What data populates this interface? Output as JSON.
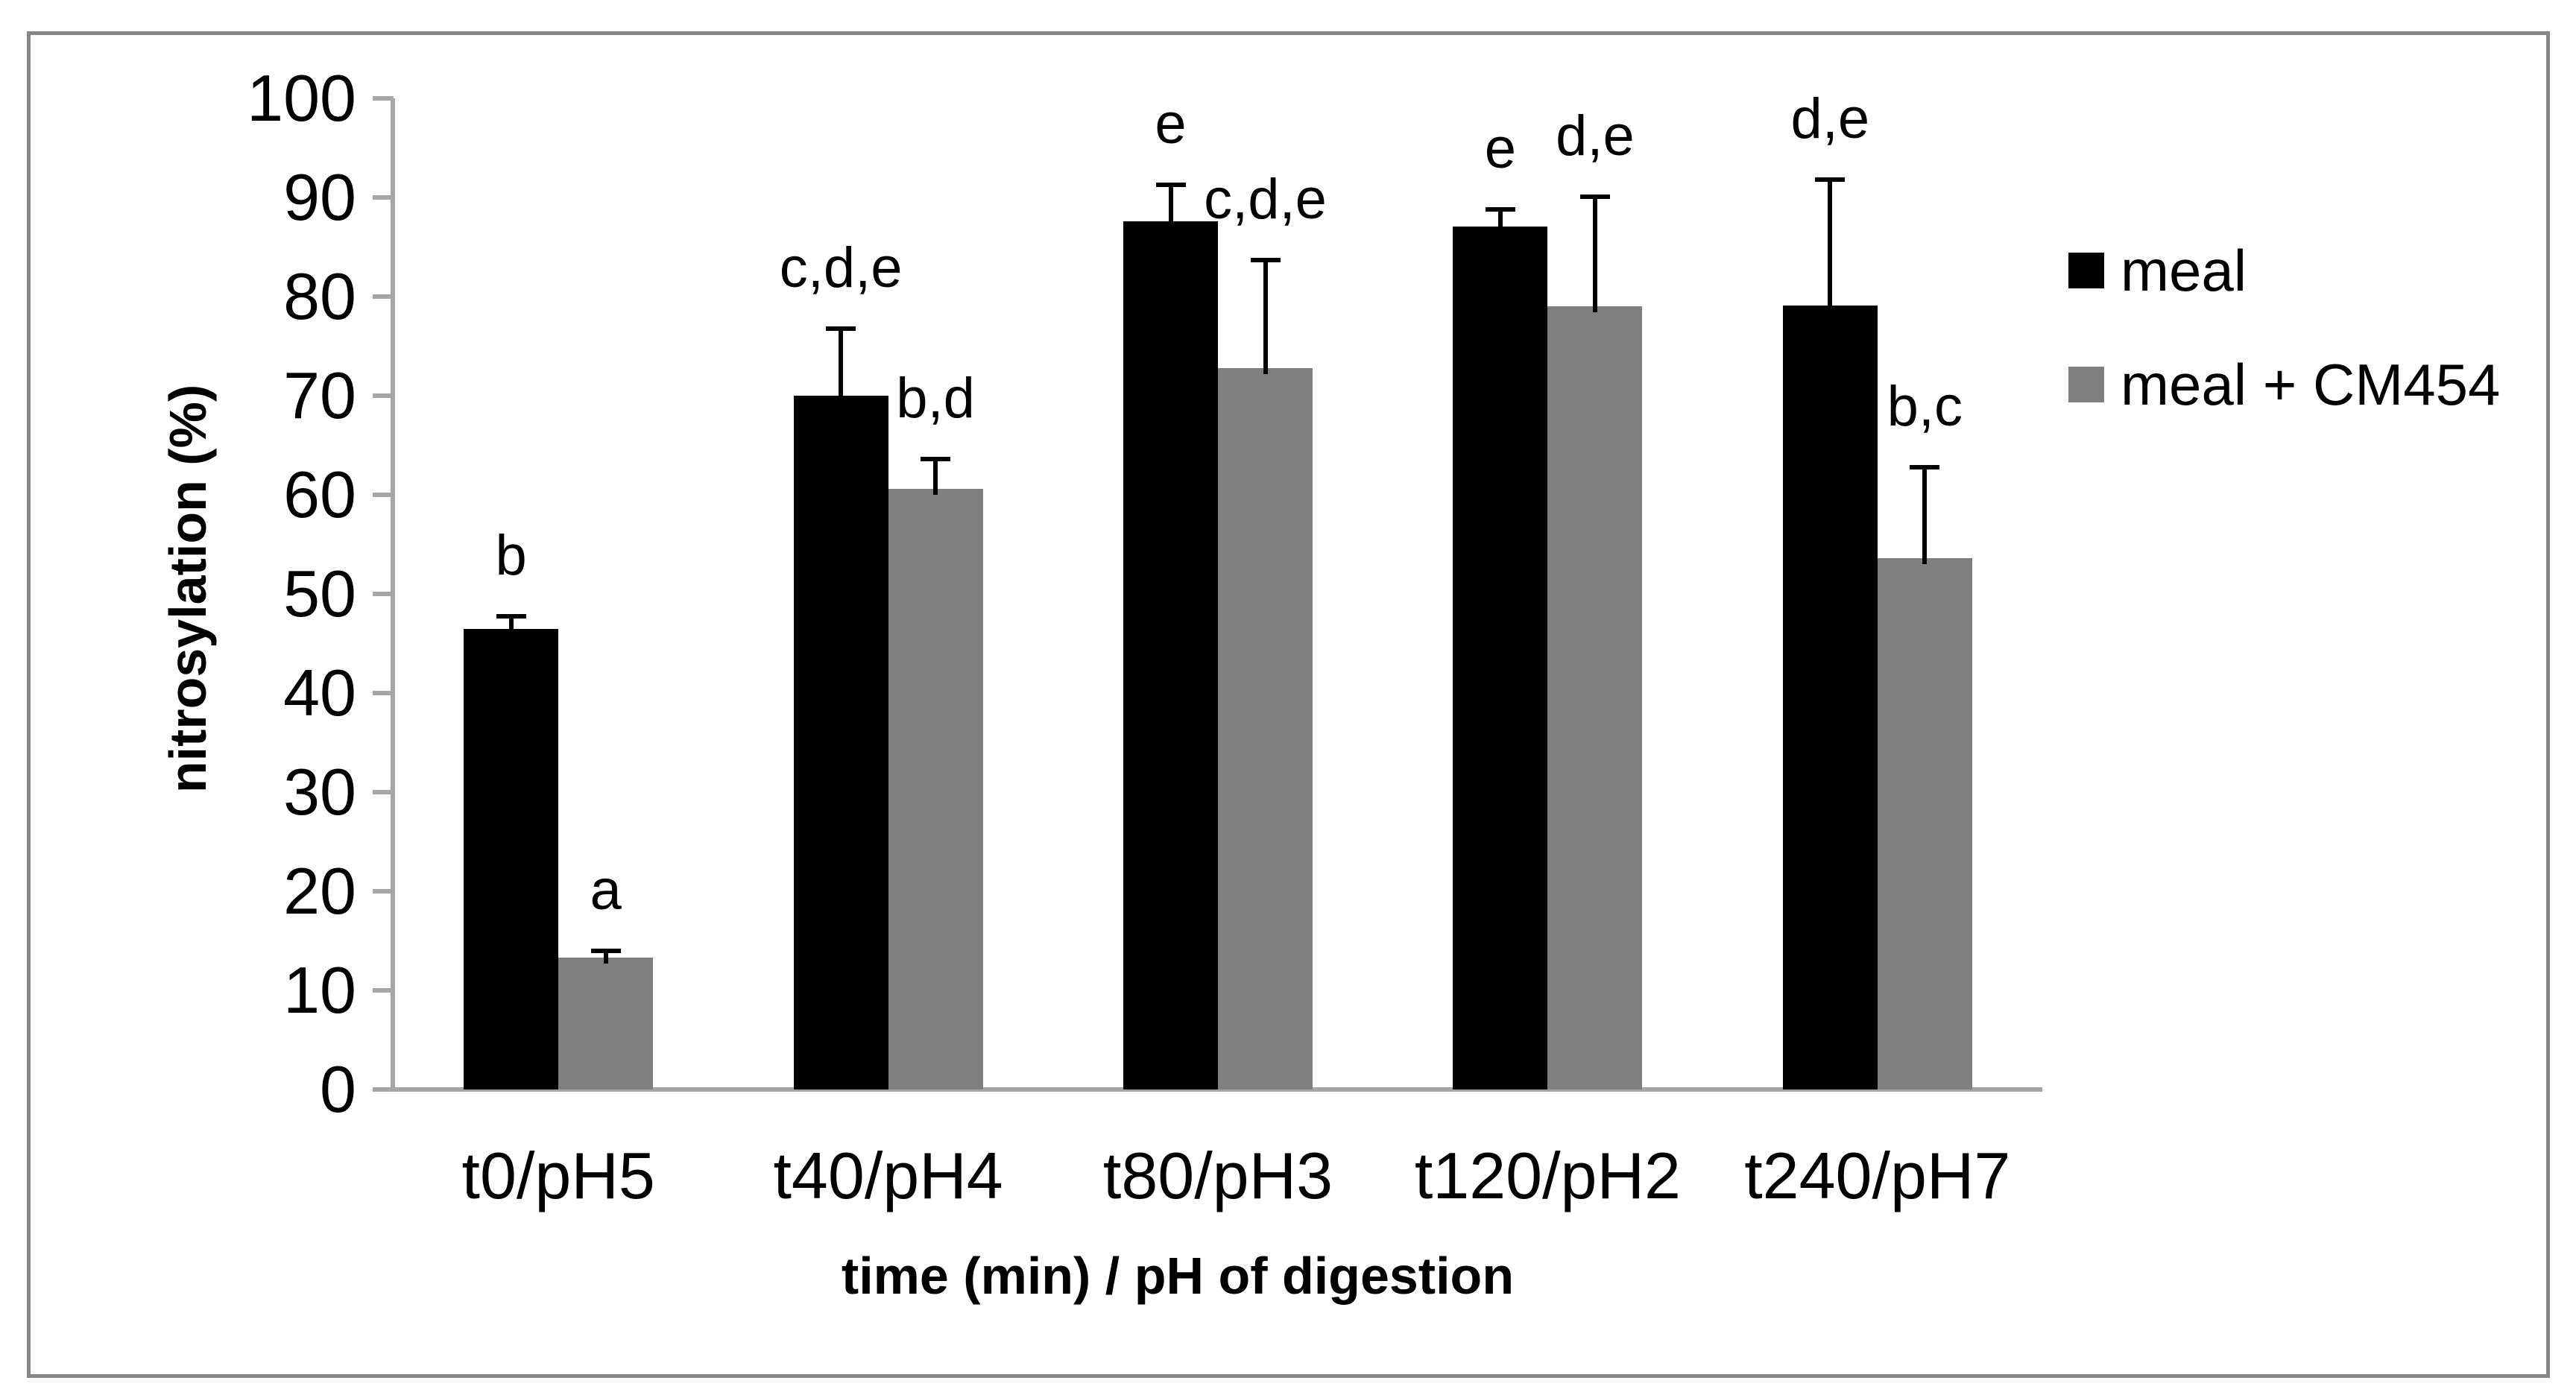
{
  "figure": {
    "background": "#ffffff",
    "border_color": "#878787"
  },
  "chart_data": {
    "type": "bar",
    "title": "",
    "xlabel": "time (min) / pH of digestion",
    "ylabel": "nitrosylation (%)",
    "categories": [
      "t0/pH5",
      "t40/pH4",
      "t80/pH3",
      "t120/pH2",
      "t240/pH7"
    ],
    "ylim": [
      0,
      100
    ],
    "ytick_step": 10,
    "ytick_labels": [
      "0",
      "10",
      "20",
      "30",
      "40",
      "50",
      "60",
      "70",
      "80",
      "90",
      "100"
    ],
    "grid": false,
    "legend_position": "right",
    "axis_color": "#a6a6a6",
    "error_bar_color": "#000000",
    "series": [
      {
        "name": "meal",
        "color": "#000000",
        "values": [
          46.5,
          70.0,
          87.6,
          87.1,
          79.1
        ],
        "errors_plus": [
          1.5,
          7.0,
          3.9,
          1.9,
          12.9
        ],
        "sig_letters": [
          "b",
          "c,d,e",
          "e",
          "e",
          "d,e"
        ]
      },
      {
        "name": "meal + CM454",
        "color": "#7f7f7f",
        "values": [
          13.3,
          60.6,
          72.8,
          79.0,
          53.6
        ],
        "errors_plus": [
          0.9,
          3.2,
          11.1,
          11.3,
          9.4
        ],
        "sig_letters": [
          "a",
          "b,d",
          "c,d,e",
          "d,e",
          "b,c"
        ]
      }
    ]
  }
}
